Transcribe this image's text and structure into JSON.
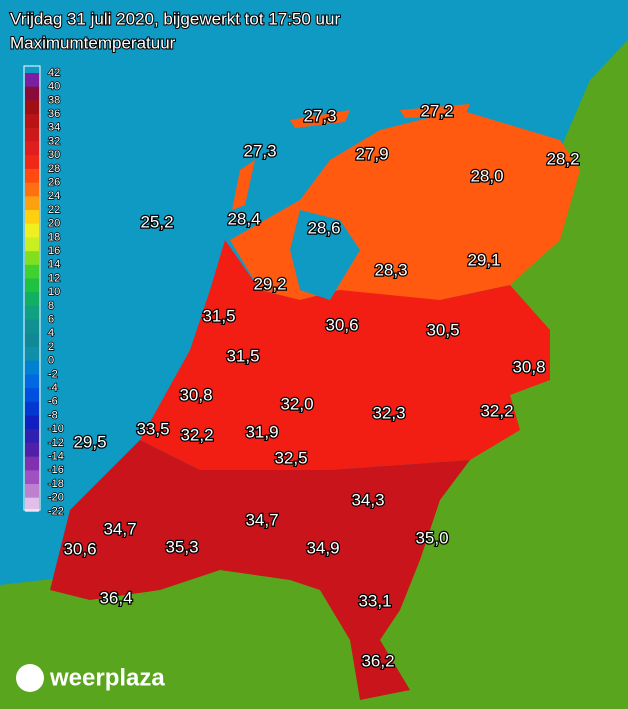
{
  "header": {
    "title": "Vrijdag 31 juli 2020, bijgewerkt tot 17:50 uur",
    "subtitle": "Maximumtemperatuur"
  },
  "legend": {
    "ticks": [
      42,
      40,
      38,
      36,
      34,
      32,
      30,
      28,
      26,
      24,
      22,
      20,
      18,
      16,
      14,
      12,
      10,
      8,
      6,
      4,
      2,
      0,
      -2,
      -4,
      -6,
      -8,
      -10,
      -12,
      -14,
      -16,
      -18,
      -20,
      -22
    ],
    "colors": [
      "#7a1fa0",
      "#8a0a3a",
      "#a00f14",
      "#b81414",
      "#cc1a1a",
      "#e01e1e",
      "#f02818",
      "#ff4a10",
      "#ff7010",
      "#ffa010",
      "#ffd010",
      "#f0f020",
      "#c8f020",
      "#80e020",
      "#40d030",
      "#20c040",
      "#10b060",
      "#10a080",
      "#109090",
      "#108898",
      "#1090a8",
      "#0080d0",
      "#0068e0",
      "#0050e0",
      "#0038d0",
      "#1020c0",
      "#3020b0",
      "#5020a8",
      "#8030b0",
      "#a050c0",
      "#c080d0",
      "#e0c0e8"
    ]
  },
  "stations": [
    "27,3",
    "27,2",
    "27,3",
    "27,9",
    "28,2",
    "28,0",
    "25,2",
    "28,4",
    "28,6",
    "28,3",
    "29,1",
    "29,2",
    "31,5",
    "30,6",
    "30,5",
    "31,5",
    "30,8",
    "30,8",
    "32,0",
    "32,3",
    "32,2",
    "33,5",
    "32,2",
    "31,9",
    "29,5",
    "32,5",
    "34,3",
    "34,7",
    "34,7",
    "35,0",
    "30,6",
    "35,3",
    "34,9",
    "33,1",
    "36,4",
    "36,2"
  ],
  "logo": "weerplaza"
}
